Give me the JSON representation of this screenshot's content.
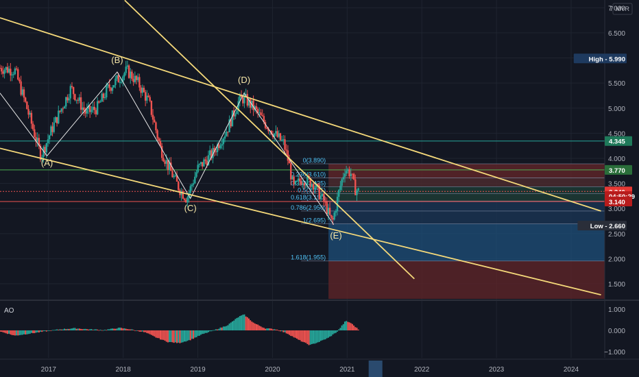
{
  "currency": "MYR",
  "colors": {
    "background": "#131722",
    "up": "#26a69a",
    "down": "#ef5350",
    "trendline": "#f5d97a",
    "zigzag": "#e8e8e8",
    "fib_blue": "#1e4f7a",
    "fib_red": "#5c2428",
    "fib_text": "#4fc3f7"
  },
  "chart_data": [
    {
      "type": "candlestick",
      "title": "",
      "y_axis": {
        "ylim": [
          1.2,
          7.1
        ],
        "ticks": [
          "1.500",
          "2.000",
          "2.500",
          "3.000",
          "3.500",
          "4.000",
          "4.500",
          "5.000",
          "5.500",
          "6.000",
          "6.500",
          "7.000"
        ],
        "top_label": "7",
        "unit": "MYR"
      },
      "x_axis": {
        "range": [
          2016.35,
          2024.45
        ],
        "ticks": [
          {
            "label": "2017",
            "x": 2017.0
          },
          {
            "label": "2018",
            "x": 2018.0
          },
          {
            "label": "2019",
            "x": 2019.0
          },
          {
            "label": "2020",
            "x": 2020.0
          },
          {
            "label": "2021",
            "x": 2021.0
          },
          {
            "label": "2022",
            "x": 2022.0
          },
          {
            "label": "2023",
            "x": 2023.0
          },
          {
            "label": "2024",
            "x": 2024.0
          }
        ]
      },
      "price_path": [
        [
          2016.35,
          5.8
        ],
        [
          2016.55,
          5.75
        ],
        [
          2016.7,
          5.05
        ],
        [
          2016.9,
          4.05
        ],
        [
          2017.05,
          4.6
        ],
        [
          2017.3,
          5.4
        ],
        [
          2017.5,
          4.9
        ],
        [
          2017.65,
          5.0
        ],
        [
          2017.8,
          5.4
        ],
        [
          2017.95,
          5.6
        ],
        [
          2018.05,
          5.75
        ],
        [
          2018.2,
          5.5
        ],
        [
          2018.35,
          5.1
        ],
        [
          2018.5,
          4.2
        ],
        [
          2018.6,
          3.85
        ],
        [
          2018.75,
          3.4
        ],
        [
          2018.85,
          3.2
        ],
        [
          2019.0,
          3.8
        ],
        [
          2019.2,
          4.1
        ],
        [
          2019.4,
          4.6
        ],
        [
          2019.55,
          5.15
        ],
        [
          2019.62,
          5.2
        ],
        [
          2019.75,
          5.0
        ],
        [
          2019.9,
          4.7
        ],
        [
          2020.05,
          4.45
        ],
        [
          2020.15,
          4.3
        ],
        [
          2020.22,
          3.9
        ],
        [
          2020.28,
          3.4
        ],
        [
          2020.4,
          3.6
        ],
        [
          2020.55,
          3.5
        ],
        [
          2020.7,
          3.1
        ],
        [
          2020.8,
          2.7
        ],
        [
          2020.9,
          3.4
        ],
        [
          2020.97,
          3.8
        ],
        [
          2021.05,
          3.7
        ],
        [
          2021.1,
          3.4
        ],
        [
          2021.15,
          3.34
        ]
      ],
      "price_labels": [
        {
          "label": "High",
          "value": "5.990",
          "y": 5.99,
          "color": "#1e3a5f"
        },
        {
          "label": "",
          "value": "4.345",
          "y": 4.345,
          "color": "#1f7a5a"
        },
        {
          "label": "",
          "value": "3.770",
          "y": 3.77,
          "color": "#2a6e3a"
        },
        {
          "label": "",
          "value": "3.340",
          "y": 3.34,
          "color": "#e53935"
        },
        {
          "label": "",
          "value": "04:50:29",
          "y": 3.25,
          "color": "#b71c1c"
        },
        {
          "label": "",
          "value": "3.140",
          "y": 3.14,
          "color": "#b71c1c"
        },
        {
          "label": "Low",
          "value": "2.660",
          "y": 2.66,
          "color": "#2a2e39"
        }
      ],
      "horizontal_lines": [
        {
          "y": 4.345,
          "color": "#26a69a"
        },
        {
          "y": 3.77,
          "color": "#4caf50"
        },
        {
          "y": 3.14,
          "color": "#ef5350"
        },
        {
          "y": 3.34,
          "color": "#ef5350",
          "dotted": true
        }
      ],
      "wave_labels": [
        {
          "label": "(A)",
          "x": 2016.98,
          "y": 3.85
        },
        {
          "label": "(B)",
          "x": 2017.92,
          "y": 5.9
        },
        {
          "label": "(C)",
          "x": 2018.9,
          "y": 2.95
        },
        {
          "label": "(D)",
          "x": 2019.62,
          "y": 5.5
        },
        {
          "label": "(E)",
          "x": 2020.85,
          "y": 2.4
        }
      ],
      "zigzag": [
        [
          2016.35,
          5.3
        ],
        [
          2016.98,
          4.05
        ],
        [
          2017.92,
          5.72
        ],
        [
          2018.9,
          3.2
        ],
        [
          2019.62,
          5.3
        ],
        [
          2020.82,
          2.68
        ]
      ],
      "trendlines": [
        {
          "from": [
            2016.35,
            6.8
          ],
          "to": [
            2024.4,
            2.95
          ]
        },
        {
          "from": [
            2016.35,
            4.2
          ],
          "to": [
            2024.4,
            1.28
          ]
        },
        {
          "from": [
            2018.02,
            7.15
          ],
          "to": [
            2021.9,
            1.6
          ]
        }
      ],
      "fib_levels": [
        {
          "ratio": "0(3.890)",
          "y": 3.89
        },
        {
          "ratio": "0.236(3.610)",
          "y": 3.61
        },
        {
          "ratio": "0.382(3.435)",
          "y": 3.435
        },
        {
          "ratio": "0.5(3.295)",
          "y": 3.295
        },
        {
          "ratio": "0.618(3.150)",
          "y": 3.15
        },
        {
          "ratio": "0.786(2.950)",
          "y": 2.95
        },
        {
          "ratio": "1(2.695)",
          "y": 2.695
        },
        {
          "ratio": "1.618(1.955)",
          "y": 1.955
        }
      ],
      "fib_x_start": 2020.75,
      "fib_x_end": 2024.45
    },
    {
      "type": "bar",
      "title": "AO",
      "ylim": [
        -1.3,
        1.3
      ],
      "ticks": [
        "1.000",
        "0.000",
        "−1.000"
      ],
      "ao_path": [
        [
          2016.35,
          -0.05
        ],
        [
          2016.55,
          -0.25
        ],
        [
          2016.75,
          -0.15
        ],
        [
          2016.95,
          -0.05
        ],
        [
          2017.15,
          0.05
        ],
        [
          2017.35,
          0.1
        ],
        [
          2017.55,
          0.05
        ],
        [
          2017.75,
          0.02
        ],
        [
          2017.95,
          0.12
        ],
        [
          2018.1,
          0.05
        ],
        [
          2018.3,
          -0.1
        ],
        [
          2018.45,
          -0.35
        ],
        [
          2018.6,
          -0.55
        ],
        [
          2018.75,
          -0.6
        ],
        [
          2018.9,
          -0.45
        ],
        [
          2019.05,
          -0.2
        ],
        [
          2019.25,
          0.05
        ],
        [
          2019.4,
          0.25
        ],
        [
          2019.55,
          0.65
        ],
        [
          2019.62,
          0.75
        ],
        [
          2019.75,
          0.35
        ],
        [
          2019.9,
          0.1
        ],
        [
          2020.05,
          0.05
        ],
        [
          2020.2,
          -0.15
        ],
        [
          2020.35,
          -0.45
        ],
        [
          2020.5,
          -0.7
        ],
        [
          2020.62,
          -0.55
        ],
        [
          2020.75,
          -0.35
        ],
        [
          2020.87,
          -0.05
        ],
        [
          2020.98,
          0.45
        ],
        [
          2021.05,
          0.35
        ],
        [
          2021.15,
          0.05
        ]
      ]
    }
  ]
}
